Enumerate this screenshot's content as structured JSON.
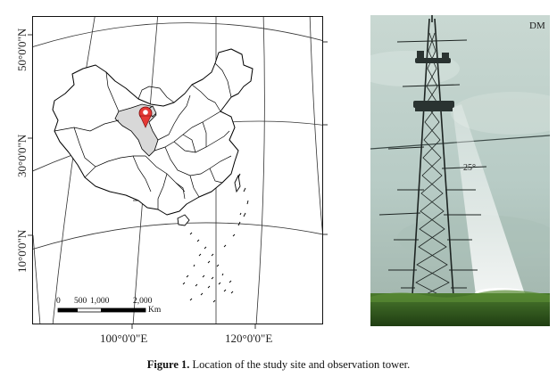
{
  "map": {
    "lat_labels": [
      "50°0'0\"N",
      "30°0'0\"N",
      "10°0'0\"N"
    ],
    "lon_labels": [
      "100°0'0\"E",
      "120°0'0\"E"
    ],
    "scale_ticks": [
      "0",
      "500",
      "1,000",
      "2,000"
    ],
    "scale_unit": "Km",
    "highlight_fill": "#d8d8d8",
    "marker_color": "#d62b2b"
  },
  "photo": {
    "label": "DM",
    "angle_label": "25°"
  },
  "caption": {
    "prefix": "Figure 1.",
    "text": "Location of the study site and observation tower."
  }
}
